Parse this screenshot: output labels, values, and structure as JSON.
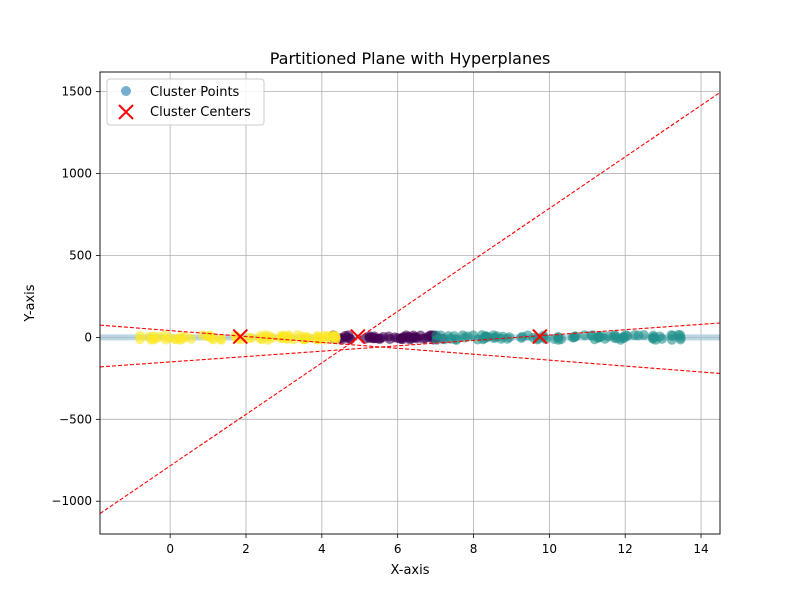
{
  "chart_data": {
    "type": "scatter",
    "title": "Partitioned Plane with Hyperplanes",
    "xlabel": "X-axis",
    "ylabel": "Y-axis",
    "xlim": [
      -1.85,
      14.5
    ],
    "ylim": [
      -1200,
      1620
    ],
    "xticks": [
      0,
      2,
      4,
      6,
      8,
      10,
      12,
      14
    ],
    "yticks": [
      -1000,
      -500,
      0,
      500,
      1000,
      1500
    ],
    "xtick_labels": [
      "0",
      "2",
      "4",
      "6",
      "8",
      "10",
      "12",
      "14"
    ],
    "ytick_labels": [
      "−1000",
      "−500",
      "0",
      "500",
      "1000",
      "1500"
    ],
    "grid": true,
    "legend_position": "upper-left",
    "legend": {
      "points_label": "Cluster Points",
      "centers_label": "Cluster Centers"
    },
    "clusters": [
      {
        "name": "purple",
        "color": "#440154",
        "x_range": [
          4.3,
          7.2
        ],
        "count": 55
      },
      {
        "name": "teal",
        "color": "#21918c",
        "x_range": [
          7.0,
          13.5
        ],
        "count": 85
      },
      {
        "name": "yellow",
        "color": "#fde725",
        "x_range": [
          -0.8,
          4.6
        ],
        "count": 75
      }
    ],
    "centers": [
      {
        "x": 1.85,
        "y": 5
      },
      {
        "x": 4.95,
        "y": 5
      },
      {
        "x": 9.75,
        "y": 5
      }
    ],
    "center_color": "#ff0000",
    "points_color": "#1f77b4",
    "hyperplanes": [
      {
        "x0": -1.85,
        "y0": -1075,
        "x1": 14.5,
        "y1": 1495
      },
      {
        "x0": -1.85,
        "y0": 75,
        "x1": 14.5,
        "y1": -220
      },
      {
        "x0": -1.85,
        "y0": -180,
        "x1": 14.5,
        "y1": 88
      }
    ],
    "hyperplane_color": "#ff0000",
    "boundary_band_color": "#9ec5d6"
  }
}
